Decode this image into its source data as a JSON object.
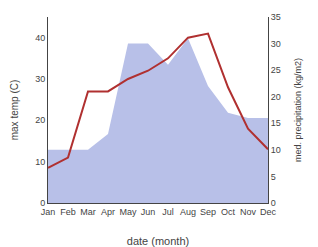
{
  "chart_data": {
    "type": "line",
    "xlabel": "date (month)",
    "ylabel": "max temp (C)",
    "y2label": "med. precipitation (kg/m2)",
    "categories": [
      "Jan",
      "Feb",
      "Mar",
      "Apr",
      "May",
      "Jun",
      "Jul",
      "Aug",
      "Sep",
      "Oct",
      "Nov",
      "Dec"
    ],
    "series": [
      {
        "type": "area",
        "axis": "y2",
        "color": "#b8c0e8",
        "values": [
          10,
          10,
          10,
          13,
          30,
          30,
          26,
          31,
          22,
          17,
          16,
          16
        ]
      },
      {
        "type": "line",
        "color": "#b03030",
        "values": [
          8.5,
          11.0,
          27.0,
          27.0,
          30.0,
          32.0,
          35.0,
          40.0,
          41.0,
          28.0,
          18.0,
          13.0
        ]
      }
    ],
    "ylim": [
      0,
      45
    ],
    "yticks": [
      0,
      10,
      20,
      30,
      40
    ],
    "y2lim": [
      0,
      35
    ],
    "y2ticks": [
      0,
      5,
      10,
      15,
      20,
      25,
      30,
      35
    ],
    "grid": false
  }
}
